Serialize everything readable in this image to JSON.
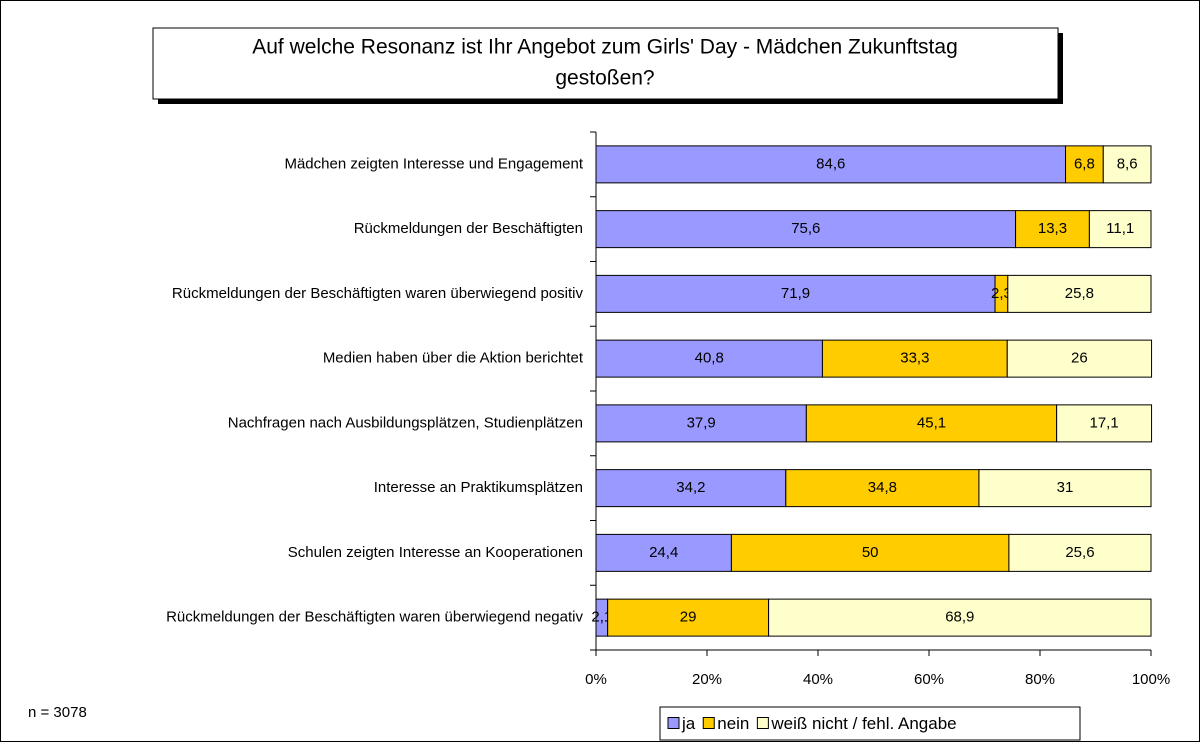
{
  "chart_data": {
    "type": "bar",
    "orientation": "horizontal",
    "stacked": true,
    "title": [
      "Auf welche Resonanz ist Ihr Angebot zum Girls' Day - Mädchen Zukunftstag",
      "gestoßen?"
    ],
    "annotation": "n = 3078",
    "categories": [
      "Mädchen zeigten Interesse und Engagement",
      "Rückmeldungen der Beschäftigten",
      "Rückmeldungen der Beschäftigten waren überwiegend positiv",
      "Medien haben über die Aktion berichtet",
      "Nachfragen nach Ausbildungsplätzen, Studienplätzen",
      "Interesse an Praktikumsplätzen",
      "Schulen zeigten Interesse an Kooperationen",
      "Rückmeldungen der Beschäftigten waren überwiegend negativ"
    ],
    "series": [
      {
        "name": "ja",
        "color": "#9999ff",
        "values": [
          84.6,
          75.6,
          71.9,
          40.8,
          37.9,
          34.2,
          24.4,
          2.1
        ],
        "value_labels": [
          "84,6",
          "75,6",
          "71,9",
          "40,8",
          "37,9",
          "34,2",
          "24,4",
          "2,1"
        ]
      },
      {
        "name": "nein",
        "color": "#ffcc00",
        "values": [
          6.8,
          13.3,
          2.3,
          33.3,
          45.1,
          34.8,
          50,
          29
        ],
        "value_labels": [
          "6,8",
          "13,3",
          "2,3",
          "33,3",
          "45,1",
          "34,8",
          "50",
          "29"
        ]
      },
      {
        "name": "weiß nicht / fehl. Angabe",
        "color": "#ffffcc",
        "values": [
          8.6,
          11.1,
          25.8,
          26,
          17.1,
          31,
          25.6,
          68.9
        ],
        "value_labels": [
          "8,6",
          "11,1",
          "25,8",
          "26",
          "17,1",
          "31",
          "25,6",
          "68,9"
        ]
      }
    ],
    "xlim": [
      0,
      100
    ],
    "xticks": [
      {
        "value": 0,
        "label": "0%"
      },
      {
        "value": 20,
        "label": "20%"
      },
      {
        "value": 40,
        "label": "40%"
      },
      {
        "value": 60,
        "label": "60%"
      },
      {
        "value": 80,
        "label": "80%"
      },
      {
        "value": 100,
        "label": "100%"
      }
    ],
    "legend": "bottom",
    "grid": false
  }
}
